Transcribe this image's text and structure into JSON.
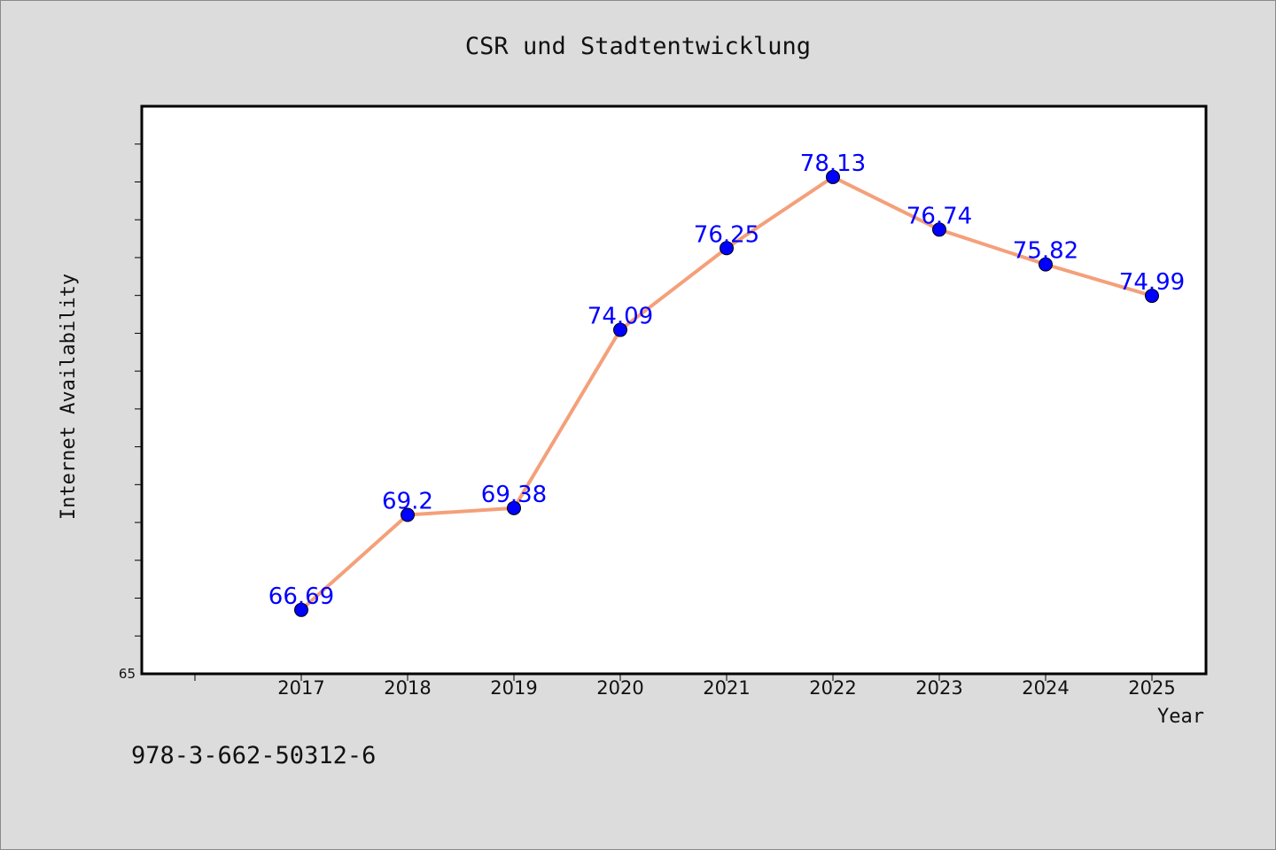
{
  "chart_data": {
    "type": "line",
    "title": "CSR und Stadtentwicklung",
    "xlabel": "Year",
    "ylabel": "Internet Availability",
    "categories": [
      "2017",
      "2018",
      "2019",
      "2020",
      "2021",
      "2022",
      "2023",
      "2024",
      "2025"
    ],
    "series": [
      {
        "values": [
          66.69,
          69.2,
          69.38,
          74.09,
          76.25,
          78.13,
          76.74,
          75.82,
          74.99
        ],
        "data_labels": [
          "66.69",
          "69.2",
          "69.38",
          "74.09",
          "76.25",
          "78.13",
          "76.74",
          "75.82",
          "74.99"
        ],
        "line_color": "#f4a07a",
        "marker_color": "#0000ff",
        "label_color": "#0000ff"
      }
    ],
    "yticks_labeled": [
      "65"
    ],
    "ylim": [
      65,
      80
    ],
    "grid": false,
    "legend": "none"
  },
  "footer_text": "978-3-662-50312-6"
}
